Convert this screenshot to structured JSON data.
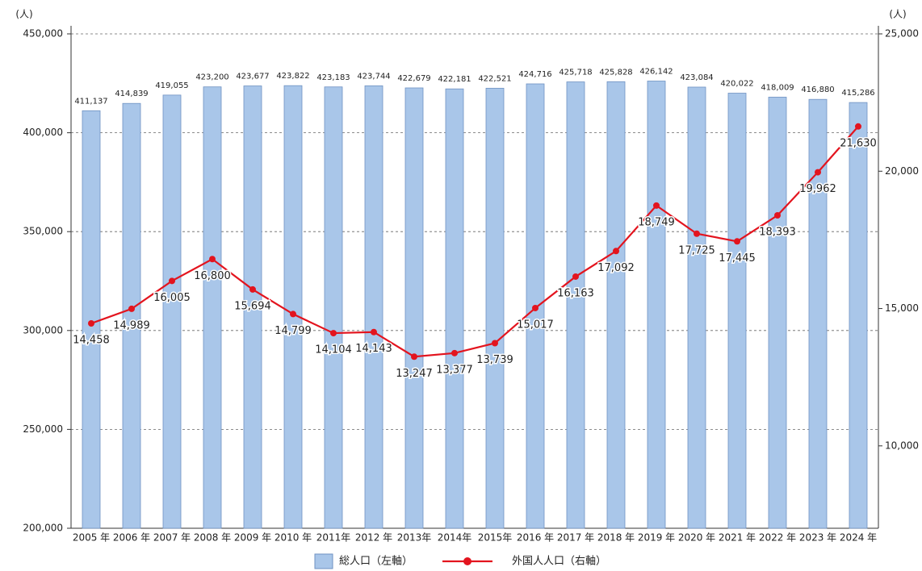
{
  "chart_data": {
    "type": "bar",
    "y_label": "(人)",
    "y2_label": "(人)",
    "categories": [
      "2005 年",
      "2006 年",
      "2007 年",
      "2008 年",
      "2009 年",
      "2010 年",
      "2011年",
      "2012 年",
      "2013年",
      "2014年",
      "2015年",
      "2016 年",
      "2017 年",
      "2018 年",
      "2019 年",
      "2020 年",
      "2021 年",
      "2022 年",
      "2023 年",
      "2024 年"
    ],
    "series": [
      {
        "name": "総人口（左軸）",
        "type": "bar",
        "color": "#a9c6e9",
        "axis": "y",
        "values": [
          411137,
          414839,
          419055,
          423200,
          423677,
          423822,
          423183,
          423744,
          422679,
          422181,
          422521,
          424716,
          425718,
          425828,
          426142,
          423084,
          420022,
          418009,
          416880,
          415286
        ],
        "value_labels": [
          "411,137",
          "414,839",
          "419,055",
          "423,200",
          "423,677",
          "423,822",
          "423,183",
          "423,744",
          "422,679",
          "422,181",
          "422,521",
          "424,716",
          "425,718",
          "425,828",
          "426,142",
          "423,084",
          "420,022",
          "418,009",
          "416,880",
          "415,286"
        ]
      },
      {
        "name": "外国人人口（右軸）",
        "type": "line",
        "color": "#e3141e",
        "axis": "y2",
        "values": [
          14458,
          14989,
          16005,
          16800,
          15694,
          14799,
          14104,
          14143,
          13247,
          13377,
          13739,
          15017,
          16163,
          17092,
          18749,
          17725,
          17445,
          18393,
          19962,
          21630
        ],
        "value_labels": [
          "14,458",
          "14,989",
          "16,005",
          "16,800",
          "15,694",
          "14,799",
          "14,104",
          "14,143",
          "13,247",
          "13,377",
          "13,739",
          "15,017",
          "16,163",
          "17,092",
          "18,749",
          "17,725",
          "17,445",
          "18,393",
          "19,962",
          "21,630"
        ]
      }
    ],
    "ylim": [
      200000,
      450000
    ],
    "yticks": [
      {
        "value": 200000,
        "label": "200,000"
      },
      {
        "value": 250000,
        "label": "250,000"
      },
      {
        "value": 300000,
        "label": "300,000"
      },
      {
        "value": 350000,
        "label": "350,000"
      },
      {
        "value": 400000,
        "label": "400,000"
      },
      {
        "value": 450000,
        "label": "450,000"
      }
    ],
    "y2lim": [
      7000,
      25000
    ],
    "y2ticks": [
      {
        "value": 10000,
        "label": "10,000"
      },
      {
        "value": 15000,
        "label": "15,000"
      },
      {
        "value": 20000,
        "label": "20,000"
      },
      {
        "value": 25000,
        "label": "25,000"
      }
    ],
    "grid": true,
    "legend": "bottom"
  }
}
